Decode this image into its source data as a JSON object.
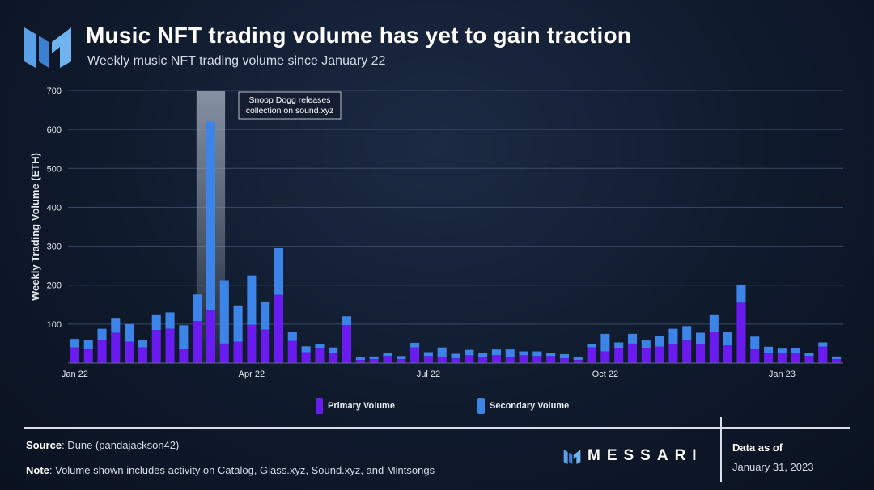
{
  "header": {
    "title": "Music NFT trading volume has yet to gain traction",
    "subtitle": "Weekly music NFT trading volume since January 22"
  },
  "footer": {
    "source_label": "Source",
    "source_text": ": Dune (pandajackson42)",
    "note_label": "Note",
    "note_text": ": Volume shown includes activity on Catalog, Glass.xyz, Sound.xyz, and Mintsongs",
    "brand": "MESSARI",
    "asof_label": "Data as of",
    "asof_date": "January 31, 2023"
  },
  "colors": {
    "primary": "#6a1bf0",
    "secondary": "#3d84e8",
    "highlight": "#8a97a8"
  },
  "chart_data": {
    "type": "bar",
    "stacked": true,
    "ylabel": "Weekly Trading Volume (ETH)",
    "xlabel": "",
    "ylim": [
      0,
      700
    ],
    "yticks": [
      100,
      200,
      300,
      400,
      500,
      600,
      700
    ],
    "grid": true,
    "legend_position": "bottom",
    "x_tick_labels": [
      {
        "label": "Jan 22",
        "index": 0
      },
      {
        "label": "Apr 22",
        "index": 13
      },
      {
        "label": "Jul 22",
        "index": 26
      },
      {
        "label": "Oct 22",
        "index": 39
      },
      {
        "label": "Jan 23",
        "index": 52
      }
    ],
    "annotation": {
      "text_lines": [
        "Snoop Dogg releases",
        "collection on sound.xyz"
      ],
      "highlight_index": 10
    },
    "series": [
      {
        "name": "Primary Volume",
        "values": [
          40,
          35,
          58,
          78,
          55,
          40,
          85,
          88,
          35,
          108,
          135,
          50,
          55,
          98,
          86,
          175,
          57,
          28,
          38,
          25,
          97,
          8,
          10,
          18,
          10,
          40,
          18,
          15,
          12,
          20,
          15,
          20,
          15,
          20,
          18,
          18,
          12,
          8,
          40,
          30,
          38,
          50,
          38,
          42,
          48,
          58,
          48,
          80,
          45,
          155,
          35,
          25,
          25,
          25,
          18,
          42,
          10
        ]
      },
      {
        "name": "Secondary Volume",
        "values": [
          22,
          25,
          30,
          38,
          45,
          20,
          40,
          42,
          62,
          68,
          485,
          163,
          93,
          127,
          72,
          120,
          22,
          15,
          10,
          15,
          23,
          7,
          7,
          8,
          8,
          12,
          10,
          25,
          12,
          14,
          12,
          15,
          20,
          10,
          12,
          7,
          11,
          8,
          8,
          45,
          15,
          25,
          20,
          27,
          40,
          37,
          30,
          45,
          35,
          45,
          33,
          17,
          12,
          14,
          8,
          11,
          7
        ]
      }
    ]
  }
}
